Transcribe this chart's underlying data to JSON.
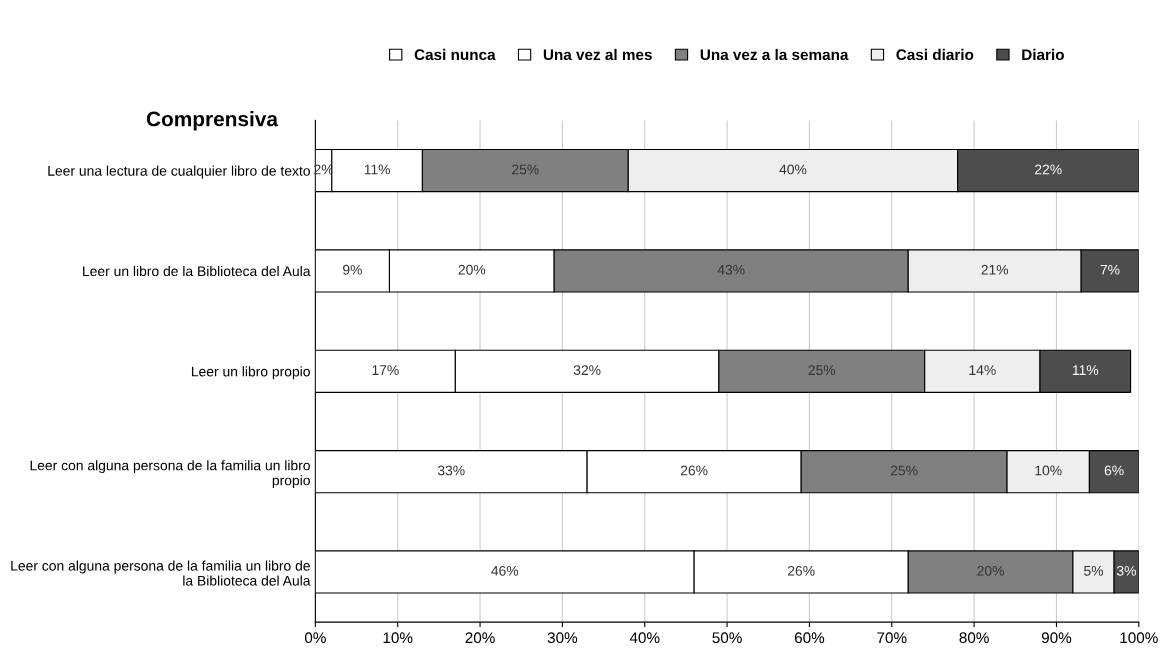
{
  "chart_data": {
    "type": "bar",
    "orientation": "horizontal",
    "stacked": true,
    "title": "Comprensiva",
    "categories": [
      "Leer una lectura de cualquier libro de texto",
      "Leer un libro de la Biblioteca del Aula",
      "Leer un libro propio",
      "Leer con alguna persona de la familia un libro propio",
      "Leer con alguna persona de la familia un libro de la Biblioteca del Aula"
    ],
    "series": [
      {
        "name": "Casi nunca",
        "color": "#ffffff",
        "values": [
          2,
          9,
          17,
          33,
          46
        ],
        "value_labels": [
          "2%",
          "9%",
          "17%",
          "33%",
          "46%"
        ]
      },
      {
        "name": "Una vez al mes",
        "color": "#ffffff",
        "values": [
          11,
          20,
          32,
          26,
          26
        ],
        "value_labels": [
          "11%",
          "20%",
          "32%",
          "26%",
          "26%"
        ]
      },
      {
        "name": "Una vez a la semana",
        "color": "#808080",
        "values": [
          25,
          43,
          25,
          25,
          20
        ],
        "value_labels": [
          "25%",
          "43%",
          "25%",
          "25%",
          "20%"
        ]
      },
      {
        "name": "Casi diario",
        "color": "#eeeeee",
        "values": [
          40,
          21,
          14,
          10,
          5
        ],
        "value_labels": [
          "40%",
          "21%",
          "14%",
          "10%",
          "5%"
        ]
      },
      {
        "name": "Diario",
        "color": "#4d4d4d",
        "values": [
          22,
          7,
          11,
          6,
          3
        ],
        "value_labels": [
          "22%",
          "7%",
          "11%",
          "6%",
          "3%"
        ]
      }
    ],
    "xlim": [
      0,
      100
    ],
    "xticks": [
      {
        "value": 0,
        "label": "0%"
      },
      {
        "value": 10,
        "label": "10%"
      },
      {
        "value": 20,
        "label": "20%"
      },
      {
        "value": 30,
        "label": "30%"
      },
      {
        "value": 40,
        "label": "40%"
      },
      {
        "value": 50,
        "label": "50%"
      },
      {
        "value": 60,
        "label": "60%"
      },
      {
        "value": 70,
        "label": "70%"
      },
      {
        "value": 80,
        "label": "80%"
      },
      {
        "value": 90,
        "label": "90%"
      },
      {
        "value": 100,
        "label": "100%"
      }
    ],
    "grid": "x",
    "legend": "top"
  }
}
